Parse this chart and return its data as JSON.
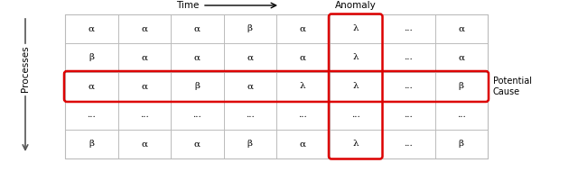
{
  "title_time": "Time",
  "title_anomaly": "Anomaly",
  "label_processes": "Processes",
  "label_potential_cause": "Potential\nCause",
  "rows": [
    [
      "α",
      "α",
      "α",
      "β",
      "α",
      "λ",
      "...",
      "α"
    ],
    [
      "β",
      "α",
      "α",
      "α",
      "α",
      "λ",
      "...",
      "α"
    ],
    [
      "α",
      "α",
      "β",
      "α",
      "λ",
      "λ",
      "...",
      "β"
    ],
    [
      "...",
      "...",
      "...",
      "...",
      "...",
      "...",
      "...",
      "..."
    ],
    [
      "β",
      "α",
      "α",
      "β",
      "α",
      "λ",
      "...",
      "β"
    ]
  ],
  "num_cols": 8,
  "num_rows": 5,
  "anomaly_col": 5,
  "potential_row": 2,
  "red_color": "#dd0000",
  "grid_color": "#bbbbbb",
  "bg_color": "#ffffff",
  "cell_fontsize": 7.5,
  "label_fontsize": 7.5
}
